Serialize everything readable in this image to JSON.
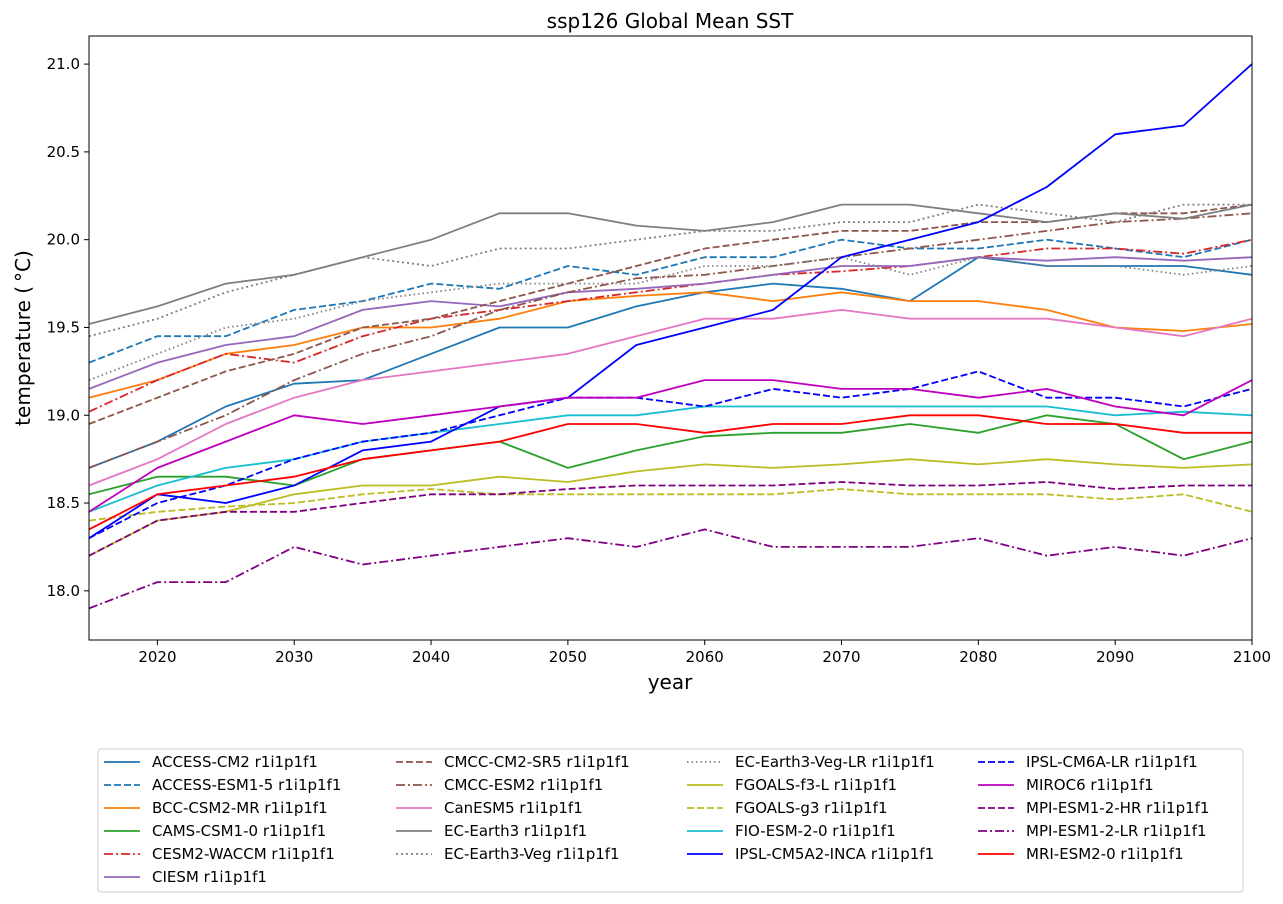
{
  "chart_data": {
    "type": "line",
    "title": "ssp126 Global Mean SST",
    "xlabel": "year",
    "ylabel": "temperature ($^\\circ$C)",
    "ylabel_display": "temperature ( °C)",
    "xlim": [
      2015,
      2100
    ],
    "ylim": [
      17.72,
      21.16
    ],
    "xticks": [
      2020,
      2030,
      2040,
      2050,
      2060,
      2070,
      2080,
      2090,
      2100
    ],
    "yticks": [
      18.0,
      18.5,
      19.0,
      19.5,
      20.0,
      20.5,
      21.0
    ],
    "ytick_labels": [
      "18.0",
      "18.5",
      "19.0",
      "19.5",
      "20.0",
      "20.5",
      "21.0"
    ],
    "grid": false,
    "legend_placement": "below plot, 4 columns",
    "series": [
      {
        "name": "ACCESS-CM2 r1i1p1f1",
        "color": "#1f77b4",
        "dash": "solid",
        "x": [
          2015,
          2020,
          2025,
          2030,
          2035,
          2040,
          2045,
          2050,
          2055,
          2060,
          2065,
          2070,
          2075,
          2080,
          2085,
          2090,
          2095,
          2100
        ],
        "y": [
          18.7,
          18.85,
          19.05,
          19.18,
          19.2,
          19.35,
          19.5,
          19.5,
          19.62,
          19.7,
          19.75,
          19.72,
          19.65,
          19.9,
          19.85,
          19.85,
          19.85,
          19.8
        ]
      },
      {
        "name": "ACCESS-ESM1-5 r1i1p1f1",
        "color": "#1f77b4",
        "dash": "dashed",
        "x": [
          2015,
          2020,
          2025,
          2030,
          2035,
          2040,
          2045,
          2050,
          2055,
          2060,
          2065,
          2070,
          2075,
          2080,
          2085,
          2090,
          2095,
          2100
        ],
        "y": [
          19.3,
          19.45,
          19.45,
          19.6,
          19.65,
          19.75,
          19.72,
          19.85,
          19.8,
          19.9,
          19.9,
          20.0,
          19.95,
          19.95,
          20.0,
          19.95,
          19.9,
          20.0
        ]
      },
      {
        "name": "BCC-CSM2-MR r1i1p1f1",
        "color": "#ff7f0e",
        "dash": "solid",
        "x": [
          2015,
          2020,
          2025,
          2030,
          2035,
          2040,
          2045,
          2050,
          2055,
          2060,
          2065,
          2070,
          2075,
          2080,
          2085,
          2090,
          2095,
          2100
        ],
        "y": [
          19.1,
          19.2,
          19.35,
          19.4,
          19.5,
          19.5,
          19.55,
          19.65,
          19.68,
          19.7,
          19.65,
          19.7,
          19.65,
          19.65,
          19.6,
          19.5,
          19.48,
          19.52
        ]
      },
      {
        "name": "CAMS-CSM1-0 r1i1p1f1",
        "color": "#2ca02c",
        "dash": "solid",
        "x": [
          2015,
          2020,
          2025,
          2030,
          2035,
          2040,
          2045,
          2050,
          2055,
          2060,
          2065,
          2070,
          2075,
          2080,
          2085,
          2090,
          2095,
          2100
        ],
        "y": [
          18.55,
          18.65,
          18.65,
          18.6,
          18.75,
          18.8,
          18.85,
          18.7,
          18.8,
          18.88,
          18.9,
          18.9,
          18.95,
          18.9,
          19.0,
          18.95,
          18.75,
          18.85
        ]
      },
      {
        "name": "CESM2-WACCM r1i1p1f1",
        "color": "#d62728",
        "dash": "dashdot",
        "x": [
          2015,
          2020,
          2025,
          2030,
          2035,
          2040,
          2045,
          2050,
          2055,
          2060,
          2065,
          2070,
          2075,
          2080,
          2085,
          2090,
          2095,
          2100
        ],
        "y": [
          19.02,
          19.2,
          19.35,
          19.3,
          19.45,
          19.55,
          19.6,
          19.65,
          19.7,
          19.75,
          19.8,
          19.82,
          19.85,
          19.9,
          19.95,
          19.95,
          19.92,
          20.0
        ]
      },
      {
        "name": "CIESM r1i1p1f1",
        "color": "#9467bd",
        "dash": "solid",
        "x": [
          2015,
          2020,
          2025,
          2030,
          2035,
          2040,
          2045,
          2050,
          2055,
          2060,
          2065,
          2070,
          2075,
          2080,
          2085,
          2090,
          2095,
          2100
        ],
        "y": [
          19.15,
          19.3,
          19.4,
          19.45,
          19.6,
          19.65,
          19.62,
          19.7,
          19.72,
          19.75,
          19.8,
          19.85,
          19.85,
          19.9,
          19.88,
          19.9,
          19.88,
          19.9
        ]
      },
      {
        "name": "CMCC-CM2-SR5 r1i1p1f1",
        "color": "#8c564b",
        "dash": "dashed",
        "x": [
          2015,
          2020,
          2025,
          2030,
          2035,
          2040,
          2045,
          2050,
          2055,
          2060,
          2065,
          2070,
          2075,
          2080,
          2085,
          2090,
          2095,
          2100
        ],
        "y": [
          18.95,
          19.1,
          19.25,
          19.35,
          19.5,
          19.55,
          19.65,
          19.75,
          19.85,
          19.95,
          20.0,
          20.05,
          20.05,
          20.1,
          20.1,
          20.15,
          20.15,
          20.2
        ]
      },
      {
        "name": "CMCC-ESM2 r1i1p1f1",
        "color": "#8c564b",
        "dash": "dashdot",
        "x": [
          2015,
          2020,
          2025,
          2030,
          2035,
          2040,
          2045,
          2050,
          2055,
          2060,
          2065,
          2070,
          2075,
          2080,
          2085,
          2090,
          2095,
          2100
        ],
        "y": [
          18.7,
          18.85,
          19.0,
          19.2,
          19.35,
          19.45,
          19.6,
          19.7,
          19.78,
          19.8,
          19.85,
          19.9,
          19.95,
          20.0,
          20.05,
          20.1,
          20.12,
          20.15
        ]
      },
      {
        "name": "CanESM5 r1i1p1f1",
        "color": "#e377c2",
        "dash": "solid",
        "x": [
          2015,
          2020,
          2025,
          2030,
          2035,
          2040,
          2045,
          2050,
          2055,
          2060,
          2065,
          2070,
          2075,
          2080,
          2085,
          2090,
          2095,
          2100
        ],
        "y": [
          18.6,
          18.75,
          18.95,
          19.1,
          19.2,
          19.25,
          19.3,
          19.35,
          19.45,
          19.55,
          19.55,
          19.6,
          19.55,
          19.55,
          19.55,
          19.5,
          19.45,
          19.55
        ]
      },
      {
        "name": "EC-Earth3 r1i1p1f1",
        "color": "#7f7f7f",
        "dash": "solid",
        "x": [
          2015,
          2020,
          2025,
          2030,
          2035,
          2040,
          2045,
          2050,
          2055,
          2060,
          2065,
          2070,
          2075,
          2080,
          2085,
          2090,
          2095,
          2100
        ],
        "y": [
          19.52,
          19.62,
          19.75,
          19.8,
          19.9,
          20.0,
          20.15,
          20.15,
          20.08,
          20.05,
          20.1,
          20.2,
          20.2,
          20.15,
          20.1,
          20.15,
          20.12,
          20.2
        ]
      },
      {
        "name": "EC-Earth3-Veg r1i1p1f1",
        "color": "#7f7f7f",
        "dash": "dotted",
        "x": [
          2015,
          2020,
          2025,
          2030,
          2035,
          2040,
          2045,
          2050,
          2055,
          2060,
          2065,
          2070,
          2075,
          2080,
          2085,
          2090,
          2095,
          2100
        ],
        "y": [
          19.45,
          19.55,
          19.7,
          19.8,
          19.9,
          19.85,
          19.95,
          19.95,
          20.0,
          20.05,
          20.05,
          20.1,
          20.1,
          20.2,
          20.15,
          20.1,
          20.2,
          20.2
        ]
      },
      {
        "name": "EC-Earth3-Veg-LR r1i1p1f1",
        "color": "#7f7f7f",
        "dash": "dotted2",
        "x": [
          2015,
          2020,
          2025,
          2030,
          2035,
          2040,
          2045,
          2050,
          2055,
          2060,
          2065,
          2070,
          2075,
          2080,
          2085,
          2090,
          2095,
          2100
        ],
        "y": [
          19.2,
          19.35,
          19.5,
          19.55,
          19.65,
          19.7,
          19.75,
          19.75,
          19.75,
          19.85,
          19.85,
          19.9,
          19.8,
          19.9,
          19.85,
          19.85,
          19.8,
          19.85
        ]
      },
      {
        "name": "FGOALS-f3-L r1i1p1f1",
        "color": "#bcbd22",
        "dash": "solid",
        "x": [
          2015,
          2020,
          2025,
          2030,
          2035,
          2040,
          2045,
          2050,
          2055,
          2060,
          2065,
          2070,
          2075,
          2080,
          2085,
          2090,
          2095,
          2100
        ],
        "y": [
          18.2,
          18.4,
          18.45,
          18.55,
          18.6,
          18.6,
          18.65,
          18.62,
          18.68,
          18.72,
          18.7,
          18.72,
          18.75,
          18.72,
          18.75,
          18.72,
          18.7,
          18.72
        ]
      },
      {
        "name": "FGOALS-g3 r1i1p1f1",
        "color": "#bcbd22",
        "dash": "dashed",
        "x": [
          2015,
          2020,
          2025,
          2030,
          2035,
          2040,
          2045,
          2050,
          2055,
          2060,
          2065,
          2070,
          2075,
          2080,
          2085,
          2090,
          2095,
          2100
        ],
        "y": [
          18.4,
          18.45,
          18.48,
          18.5,
          18.55,
          18.58,
          18.55,
          18.55,
          18.55,
          18.55,
          18.55,
          18.58,
          18.55,
          18.55,
          18.55,
          18.52,
          18.55,
          18.45
        ]
      },
      {
        "name": "FIO-ESM-2-0 r1i1p1f1",
        "color": "#17becf",
        "dash": "solid",
        "x": [
          2015,
          2020,
          2025,
          2030,
          2035,
          2040,
          2045,
          2050,
          2055,
          2060,
          2065,
          2070,
          2075,
          2080,
          2085,
          2090,
          2095,
          2100
        ],
        "y": [
          18.45,
          18.6,
          18.7,
          18.75,
          18.85,
          18.9,
          18.95,
          19.0,
          19.0,
          19.05,
          19.05,
          19.05,
          19.05,
          19.05,
          19.05,
          19.0,
          19.02,
          19.0
        ]
      },
      {
        "name": "IPSL-CM5A2-INCA r1i1p1f1",
        "color": "#0000ff",
        "dash": "solid",
        "x": [
          2015,
          2020,
          2025,
          2030,
          2035,
          2040,
          2045,
          2050,
          2055,
          2060,
          2065,
          2070,
          2075,
          2080,
          2085,
          2090,
          2095,
          2100
        ],
        "y": [
          18.3,
          18.55,
          18.5,
          18.6,
          18.8,
          18.85,
          19.05,
          19.1,
          19.4,
          19.5,
          19.6,
          19.9,
          20.0,
          20.1,
          20.3,
          20.6,
          20.65,
          21.0
        ]
      },
      {
        "name": "IPSL-CM6A-LR r1i1p1f1",
        "color": "#0000ff",
        "dash": "dashed",
        "x": [
          2015,
          2020,
          2025,
          2030,
          2035,
          2040,
          2045,
          2050,
          2055,
          2060,
          2065,
          2070,
          2075,
          2080,
          2085,
          2090,
          2095,
          2100
        ],
        "y": [
          18.3,
          18.5,
          18.6,
          18.75,
          18.85,
          18.9,
          19.0,
          19.1,
          19.1,
          19.05,
          19.15,
          19.1,
          19.15,
          19.25,
          19.1,
          19.1,
          19.05,
          19.15
        ]
      },
      {
        "name": "MIROC6 r1i1p1f1",
        "color": "#bf00bf",
        "dash": "solid",
        "x": [
          2015,
          2020,
          2025,
          2030,
          2035,
          2040,
          2045,
          2050,
          2055,
          2060,
          2065,
          2070,
          2075,
          2080,
          2085,
          2090,
          2095,
          2100
        ],
        "y": [
          18.45,
          18.7,
          18.85,
          19.0,
          18.95,
          19.0,
          19.05,
          19.1,
          19.1,
          19.2,
          19.2,
          19.15,
          19.15,
          19.1,
          19.15,
          19.05,
          19.0,
          19.2
        ]
      },
      {
        "name": "MPI-ESM1-2-HR r1i1p1f1",
        "color": "#800080",
        "dash": "dashed",
        "x": [
          2015,
          2020,
          2025,
          2030,
          2035,
          2040,
          2045,
          2050,
          2055,
          2060,
          2065,
          2070,
          2075,
          2080,
          2085,
          2090,
          2095,
          2100
        ],
        "y": [
          18.2,
          18.4,
          18.45,
          18.45,
          18.5,
          18.55,
          18.55,
          18.58,
          18.6,
          18.6,
          18.6,
          18.62,
          18.6,
          18.6,
          18.62,
          18.58,
          18.6,
          18.6
        ]
      },
      {
        "name": "MPI-ESM1-2-LR r1i1p1f1",
        "color": "#800080",
        "dash": "dashdot",
        "x": [
          2015,
          2020,
          2025,
          2030,
          2035,
          2040,
          2045,
          2050,
          2055,
          2060,
          2065,
          2070,
          2075,
          2080,
          2085,
          2090,
          2095,
          2100
        ],
        "y": [
          17.9,
          18.05,
          18.05,
          18.25,
          18.15,
          18.2,
          18.25,
          18.3,
          18.25,
          18.35,
          18.25,
          18.25,
          18.25,
          18.3,
          18.2,
          18.25,
          18.2,
          18.3
        ]
      },
      {
        "name": "MRI-ESM2-0 r1i1p1f1",
        "color": "#ff0000",
        "dash": "solid",
        "x": [
          2015,
          2020,
          2025,
          2030,
          2035,
          2040,
          2045,
          2050,
          2055,
          2060,
          2065,
          2070,
          2075,
          2080,
          2085,
          2090,
          2095,
          2100
        ],
        "y": [
          18.35,
          18.55,
          18.6,
          18.65,
          18.75,
          18.8,
          18.85,
          18.95,
          18.95,
          18.9,
          18.95,
          18.95,
          19.0,
          19.0,
          18.95,
          18.95,
          18.9,
          18.9
        ]
      }
    ]
  }
}
